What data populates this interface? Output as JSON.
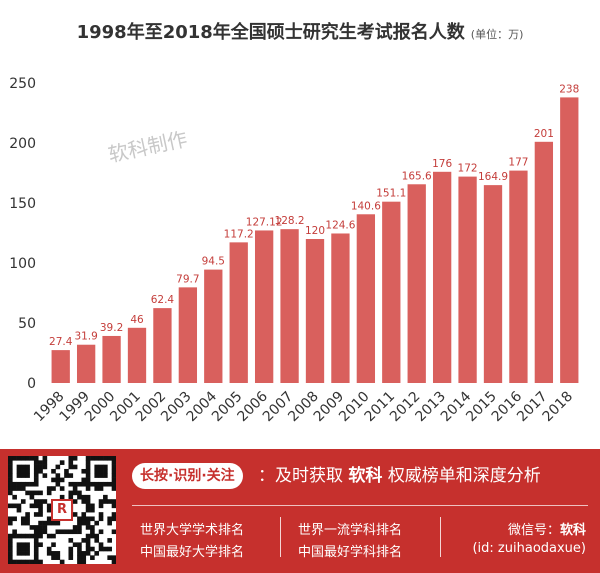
{
  "chart_data": {
    "type": "bar",
    "title": "1998年至2018年全国硕士研究生考试报名人数",
    "unit_note": "(单位：万)",
    "categories": [
      "1998",
      "1999",
      "2000",
      "2001",
      "2002",
      "2003",
      "2004",
      "2005",
      "2006",
      "2007",
      "2008",
      "2009",
      "2010",
      "2011",
      "2012",
      "2013",
      "2014",
      "2015",
      "2016",
      "2017",
      "2018"
    ],
    "values": [
      27.4,
      31.9,
      39.2,
      46,
      62.4,
      79.7,
      94.5,
      117.2,
      127.12,
      128.2,
      120,
      124.6,
      140.6,
      151.1,
      165.6,
      176,
      172,
      164.9,
      177,
      201,
      238
    ],
    "value_labels": [
      "27.4",
      "31.9",
      "39.2",
      "46",
      "62.4",
      "79.7",
      "94.5",
      "117.2",
      "127.12",
      "128.2",
      "120",
      "124.6",
      "140.6",
      "151.1",
      "165.6",
      "176",
      "172",
      "164.9",
      "177",
      "201",
      "238"
    ],
    "y_ticks": [
      0,
      50,
      100,
      150,
      200,
      250
    ],
    "ylim": [
      0,
      250
    ],
    "xlabel": "",
    "ylabel": "",
    "grid": false,
    "bar_color": "#d9605d",
    "label_color": "#c43d3a",
    "watermark": "软科制作"
  },
  "footer": {
    "background": "#c6302d",
    "slogan_badge": "长按·识别·关注",
    "slogan_prefix": "：及时获取",
    "slogan_brand": "软科",
    "slogan_suffix": "权威榜单和深度分析",
    "links": [
      "世界大学学术排名",
      "中国最好大学排名",
      "世界一流学科排名",
      "中国最好学科排名"
    ],
    "wechat_prefix": "微信号：",
    "wechat_name": "软科",
    "wechat_id": "(id: zuihaodaxue)",
    "qr_logo_icon": "ranking-logo-icon"
  }
}
